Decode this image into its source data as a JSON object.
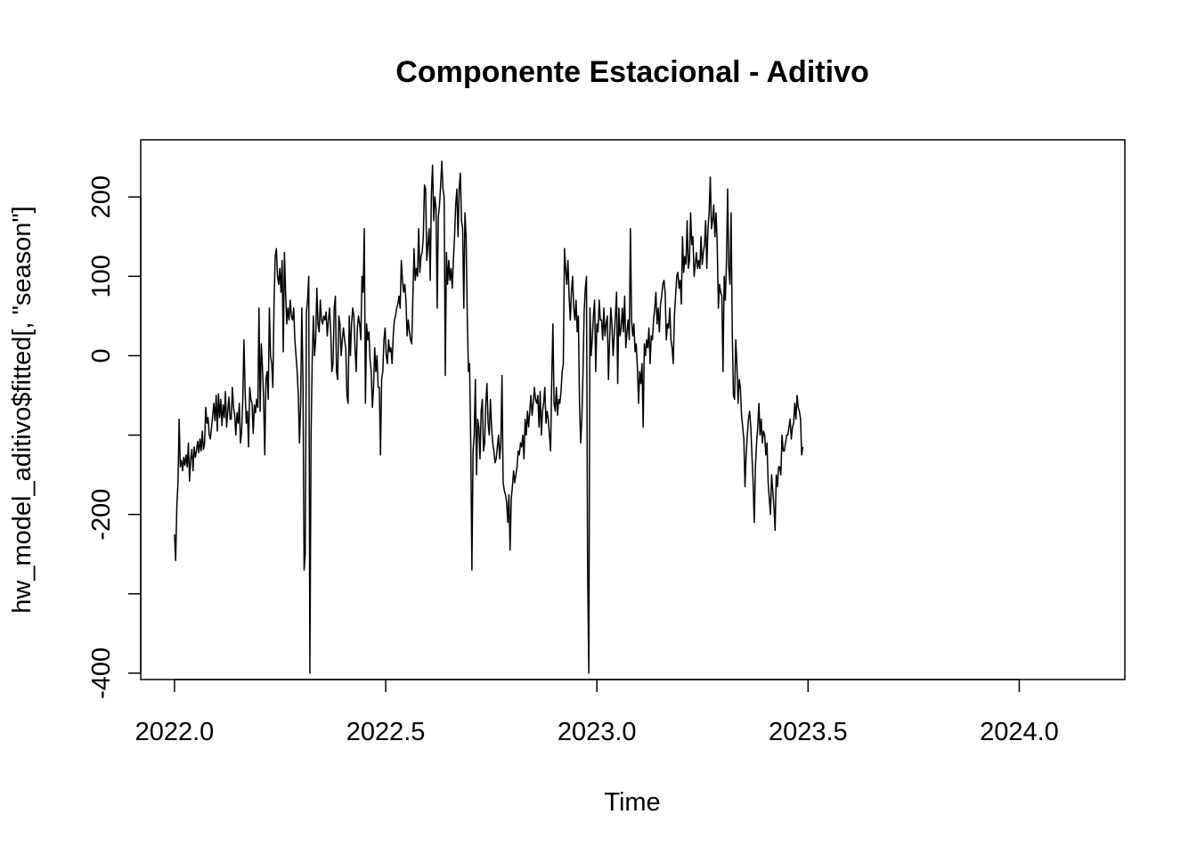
{
  "chart_data": {
    "type": "line",
    "title": "Componente Estacional - Aditivo",
    "xlabel": "Time",
    "ylabel": "hw_model_aditivo$fitted[, \"season\"]",
    "xlim": [
      2021.92,
      2024.25
    ],
    "ylim": [
      -408,
      272
    ],
    "x_ticks": [
      2022.0,
      2022.5,
      2023.0,
      2023.5,
      2024.0
    ],
    "x_tick_labels": [
      "2022.0",
      "2022.5",
      "2023.0",
      "2023.5",
      "2024.0"
    ],
    "y_ticks": [
      -400,
      -300,
      -200,
      -100,
      0,
      100,
      200
    ],
    "y_tick_labels": [
      "-400",
      "",
      "-200",
      "",
      "0",
      "100",
      "200"
    ],
    "grid": false,
    "series": [
      {
        "color": "#000000",
        "x_start": 2022.0,
        "x_step": 0.0027397,
        "values": [
          -225,
          -258,
          -190,
          -160,
          -80,
          -140,
          -132,
          -145,
          -128,
          -138,
          -125,
          -140,
          -110,
          -158,
          -130,
          -118,
          -145,
          -115,
          -128,
          -120,
          -108,
          -122,
          -105,
          -120,
          -95,
          -118,
          -110,
          -65,
          -85,
          -78,
          -100,
          -105,
          -90,
          -75,
          -60,
          -82,
          -50,
          -95,
          -48,
          -78,
          -55,
          -88,
          -62,
          -78,
          -45,
          -90,
          -70,
          -52,
          -80,
          -80,
          -40,
          -65,
          -75,
          -100,
          -72,
          -85,
          -60,
          -110,
          -95,
          -55,
          20,
          -45,
          -85,
          -70,
          -115,
          -40,
          -55,
          -60,
          -98,
          -62,
          -72,
          -55,
          -65,
          60,
          -70,
          15,
          -15,
          -55,
          -125,
          -30,
          -20,
          -55,
          60,
          0,
          -10,
          -40,
          65,
          125,
          135,
          100,
          90,
          110,
          80,
          120,
          5,
          130,
          80,
          40,
          60,
          45,
          70,
          50,
          45,
          60,
          20,
          0,
          -20,
          -50,
          -110,
          -60,
          60,
          -30,
          -270,
          -250,
          55,
          70,
          100,
          -400,
          -100,
          -5,
          50,
          0,
          20,
          85,
          40,
          30,
          70,
          45,
          40,
          50,
          45,
          55,
          25,
          45,
          60,
          30,
          -20,
          -10,
          60,
          75,
          -20,
          -30,
          50,
          40,
          0,
          20,
          35,
          20,
          10,
          -50,
          -60,
          50,
          0,
          40,
          60,
          50,
          10,
          -20,
          35,
          50,
          40,
          20,
          100,
          80,
          160,
          -60,
          40,
          20,
          30,
          -5,
          -20,
          -65,
          -40,
          10,
          -20,
          0,
          -40,
          -40,
          -125,
          -30,
          -20,
          20,
          35,
          0,
          -10,
          20,
          5,
          10,
          -10,
          25,
          45,
          50,
          60,
          65,
          75,
          60,
          120,
          95,
          80,
          90,
          70,
          25,
          45,
          30,
          20,
          15,
          75,
          135,
          95,
          110,
          100,
          160,
          105,
          125,
          130,
          150,
          215,
          210,
          120,
          140,
          160,
          95,
          205,
          240,
          170,
          200,
          185,
          60,
          175,
          190,
          215,
          245,
          210,
          200,
          -25,
          130,
          90,
          120,
          95,
          110,
          85,
          120,
          150,
          190,
          210,
          150,
          210,
          230,
          170,
          160,
          60,
          180,
          150,
          50,
          -20,
          -10,
          -110,
          -270,
          -120,
          -100,
          -30,
          -150,
          -80,
          -90,
          -130,
          -70,
          -55,
          -120,
          -110,
          -60,
          -35,
          -85,
          -100,
          -55,
          -90,
          -110,
          -120,
          -135,
          -130,
          -115,
          -100,
          -130,
          -110,
          -25,
          -160,
          -170,
          -175,
          -185,
          -210,
          -175,
          -245,
          -180,
          -165,
          -145,
          -160,
          -150,
          -140,
          -120,
          -125,
          -110,
          -115,
          -100,
          -130,
          -80,
          -100,
          -70,
          -90,
          -70,
          -50,
          -75,
          -60,
          -40,
          -55,
          -60,
          -50,
          -90,
          -45,
          -100,
          -70,
          -60,
          -40,
          -85,
          -70,
          -80,
          -100,
          -120,
          -30,
          40,
          -60,
          -70,
          -40,
          -75,
          -55,
          -60,
          -45,
          -20,
          -10,
          135,
          110,
          90,
          120,
          75,
          45,
          80,
          100,
          60,
          45,
          70,
          30,
          50,
          -60,
          -110,
          -80,
          -20,
          55,
          85,
          100,
          -270,
          -400,
          60,
          0,
          20,
          50,
          70,
          -20,
          40,
          30,
          70,
          45,
          45,
          20,
          60,
          25,
          40,
          50,
          -30,
          20,
          60,
          40,
          0,
          25,
          50,
          80,
          -35,
          60,
          25,
          35,
          60,
          30,
          75,
          10,
          30,
          45,
          20,
          160,
          45,
          25,
          40,
          5,
          15,
          -15,
          -60,
          -20,
          -35,
          -10,
          -90,
          15,
          0,
          20,
          10,
          35,
          -10,
          25,
          20,
          45,
          60,
          80,
          40,
          60,
          30,
          65,
          75,
          90,
          95,
          80,
          20,
          40,
          35,
          60,
          20,
          10,
          -10,
          50,
          75,
          100,
          105,
          85,
          95,
          65,
          150,
          105,
          125,
          115,
          170,
          110,
          120,
          180,
          140,
          150,
          100,
          115,
          130,
          110,
          120,
          110,
          150,
          115,
          130,
          140,
          170,
          110,
          160,
          180,
          225,
          160,
          170,
          190,
          150,
          180,
          140,
          60,
          90,
          80,
          75,
          -20,
          100,
          70,
          120,
          210,
          110,
          90,
          180,
          30,
          -50,
          -55,
          20,
          -10,
          -60,
          -30,
          -40,
          -75,
          -90,
          -105,
          -165,
          -125,
          -100,
          -80,
          -70,
          -90,
          -125,
          -160,
          -210,
          -140,
          -110,
          -90,
          -60,
          -100,
          -80,
          -110,
          -95,
          -100,
          -125,
          -110,
          -160,
          -180,
          -200,
          -150,
          -170,
          -190,
          -220,
          -150,
          -165,
          -140,
          -140,
          -150,
          -100,
          -120,
          -120,
          -110,
          -100,
          -100,
          -90,
          -80,
          -105,
          -90,
          -85,
          -60,
          -80,
          -50,
          -65,
          -70,
          -80,
          -125,
          -115
        ]
      }
    ]
  }
}
